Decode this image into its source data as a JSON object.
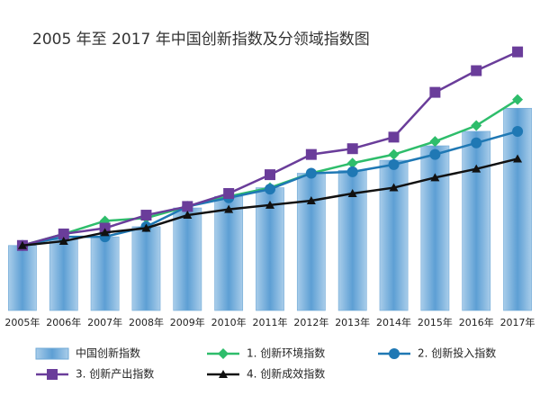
{
  "chart_data": {
    "type": "combo",
    "title": "2005 年至 2017 年中国创新指数及分领域指数图",
    "categories": [
      "2005年",
      "2006年",
      "2007年",
      "2008年",
      "2009年",
      "2010年",
      "2011年",
      "2012年",
      "2013年",
      "2014年",
      "2015年",
      "2016年",
      "2017年"
    ],
    "ylim": [
      55,
      245
    ],
    "series": [
      {
        "name": "中国创新指数",
        "type": "bar",
        "color": "#6fa8d6",
        "values": [
          100,
          104,
          106,
          113,
          126,
          134,
          140,
          150,
          152,
          159,
          169,
          179,
          195
        ]
      },
      {
        "name": "1. 创新环境指数",
        "type": "line",
        "marker": "diamond",
        "color": "#2ebd6b",
        "values": [
          100,
          108,
          117,
          119,
          127,
          134,
          140,
          150,
          157,
          163,
          172,
          183,
          201
        ]
      },
      {
        "name": "2. 创新投入指数",
        "type": "line",
        "marker": "circle",
        "color": "#1f78b4",
        "values": [
          100,
          106,
          106,
          113,
          127,
          133,
          139,
          150,
          151,
          156,
          163,
          171,
          179
        ]
      },
      {
        "name": "3. 创新产出指数",
        "type": "line",
        "marker": "square",
        "color": "#6a3d9a",
        "values": [
          100,
          108,
          112,
          121,
          127,
          136,
          149,
          163,
          167,
          175,
          206,
          221,
          234
        ]
      },
      {
        "name": "4. 创新成效指数",
        "type": "line",
        "marker": "triangle",
        "color": "#111111",
        "values": [
          100,
          103,
          109,
          112,
          121,
          125,
          128,
          131,
          136,
          140,
          147,
          153,
          160
        ]
      }
    ]
  }
}
